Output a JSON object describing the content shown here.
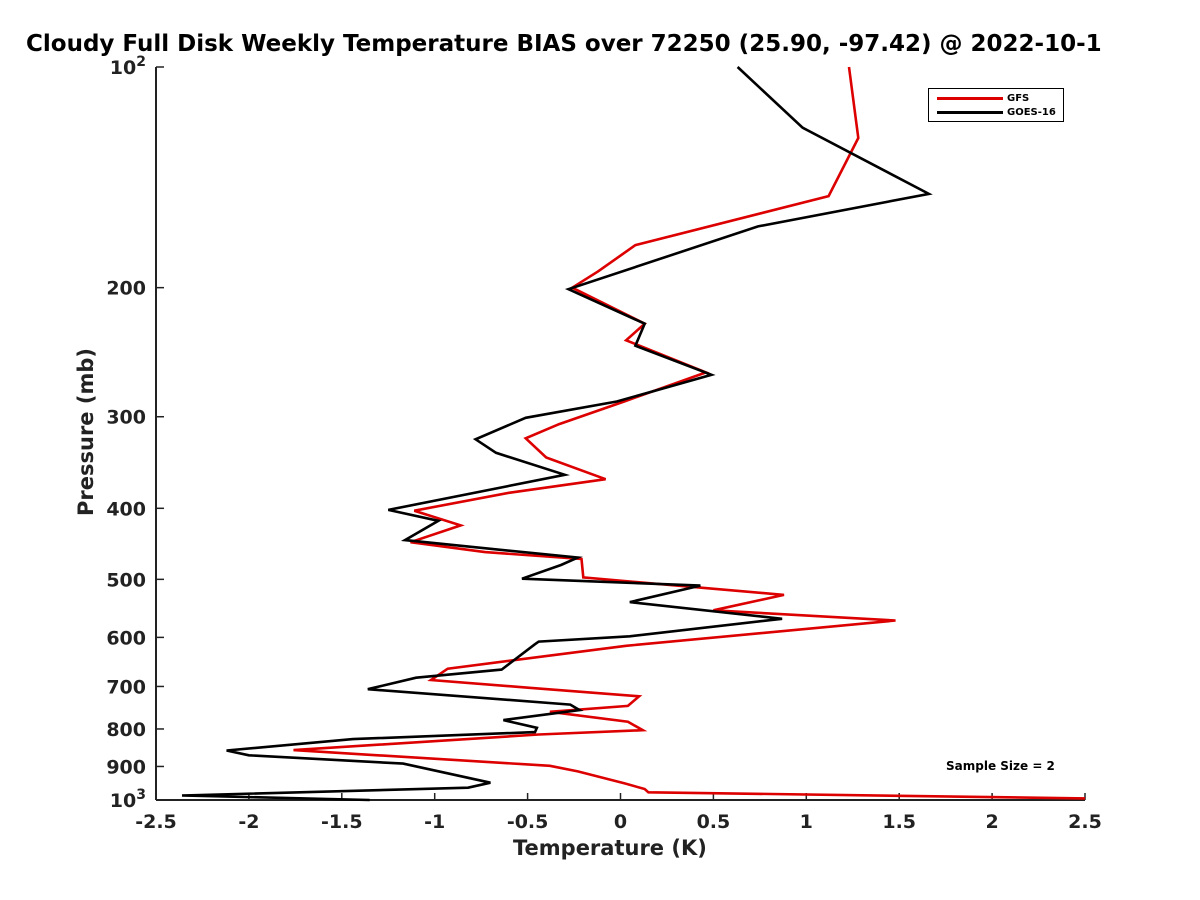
{
  "chart_data": {
    "type": "line",
    "title": "Cloudy Full Disk Weekly Temperature BIAS over 72250 (25.90, -97.42) @ 2022-10-1",
    "xlabel": "Temperature (K)",
    "ylabel": "Pressure (mb)",
    "xlim": [
      -2.5,
      2.5
    ],
    "ylim": [
      1000,
      100
    ],
    "yscale": "log",
    "x_ticks": [
      "-2.5",
      "-2",
      "-1.5",
      "-1",
      "-0.5",
      "0",
      "0.5",
      "1",
      "1.5",
      "2",
      "2.5"
    ],
    "y_ticks": [
      {
        "value": 100,
        "label": "10",
        "sup": "2"
      },
      {
        "value": 200,
        "label": "200"
      },
      {
        "value": 300,
        "label": "300"
      },
      {
        "value": 400,
        "label": "400"
      },
      {
        "value": 500,
        "label": "500"
      },
      {
        "value": 600,
        "label": "600"
      },
      {
        "value": 700,
        "label": "700"
      },
      {
        "value": 800,
        "label": "800"
      },
      {
        "value": 900,
        "label": "900"
      },
      {
        "value": 1000,
        "label": "10",
        "sup": "3"
      }
    ],
    "grid": false,
    "legend_position": "top-right",
    "annotation": "Sample Size = 2",
    "series": [
      {
        "name": "GFS",
        "color": "#dd0000",
        "points": [
          [
            1.23,
            100
          ],
          [
            1.28,
            125
          ],
          [
            1.12,
            150
          ],
          [
            0.08,
            175
          ],
          [
            -0.12,
            190
          ],
          [
            -0.26,
            200
          ],
          [
            0.13,
            224
          ],
          [
            0.03,
            236
          ],
          [
            0.46,
            261
          ],
          [
            0.02,
            286
          ],
          [
            -0.33,
            307
          ],
          [
            -0.51,
            321
          ],
          [
            -0.4,
            341
          ],
          [
            -0.08,
            365
          ],
          [
            -0.6,
            381
          ],
          [
            -1.11,
            403
          ],
          [
            -0.86,
            422
          ],
          [
            -1.13,
            445
          ],
          [
            -0.73,
            459
          ],
          [
            -0.21,
            469
          ],
          [
            -0.2,
            497
          ],
          [
            0.88,
            525
          ],
          [
            0.5,
            551
          ],
          [
            1.48,
            569
          ],
          [
            0.03,
            616
          ],
          [
            -0.93,
            662
          ],
          [
            -1.02,
            686
          ],
          [
            -0.49,
            703
          ],
          [
            0.1,
            722
          ],
          [
            0.04,
            744
          ],
          [
            -0.38,
            758
          ],
          [
            0.04,
            782
          ],
          [
            0.12,
            803
          ],
          [
            -0.44,
            814
          ],
          [
            -1.76,
            855
          ],
          [
            -1.34,
            868
          ],
          [
            -0.38,
            898
          ],
          [
            -0.23,
            914
          ],
          [
            0.02,
            949
          ],
          [
            0.13,
            966
          ],
          [
            0.15,
            976
          ],
          [
            2.5,
            995
          ]
        ]
      },
      {
        "name": "GOES-16",
        "color": "#000000",
        "points": [
          [
            0.63,
            100
          ],
          [
            0.98,
            121
          ],
          [
            1.66,
            149
          ],
          [
            0.74,
            165
          ],
          [
            -0.28,
            201
          ],
          [
            0.13,
            224
          ],
          [
            0.08,
            240
          ],
          [
            0.49,
            263
          ],
          [
            -0.02,
            286
          ],
          [
            -0.51,
            301
          ],
          [
            -0.78,
            322
          ],
          [
            -0.67,
            336
          ],
          [
            -0.3,
            360
          ],
          [
            -1.25,
            402
          ],
          [
            -0.98,
            416
          ],
          [
            -1.16,
            442
          ],
          [
            -0.23,
            467
          ],
          [
            -0.32,
            478
          ],
          [
            -0.53,
            499
          ],
          [
            0.43,
            510
          ],
          [
            0.05,
            537
          ],
          [
            0.87,
            566
          ],
          [
            0.05,
            598
          ],
          [
            -0.44,
            608
          ],
          [
            -0.46,
            613
          ],
          [
            -0.64,
            664
          ],
          [
            -1.1,
            681
          ],
          [
            -1.36,
            706
          ],
          [
            -0.27,
            741
          ],
          [
            -0.22,
            754
          ],
          [
            -0.63,
            778
          ],
          [
            -0.45,
            797
          ],
          [
            -0.46,
            808
          ],
          [
            -1.44,
            826
          ],
          [
            -2.12,
            856
          ],
          [
            -2.0,
            869
          ],
          [
            -1.17,
            892
          ],
          [
            -0.7,
            947
          ],
          [
            -0.82,
            962
          ],
          [
            -2.36,
            986
          ],
          [
            -1.35,
            1000
          ]
        ]
      }
    ]
  }
}
